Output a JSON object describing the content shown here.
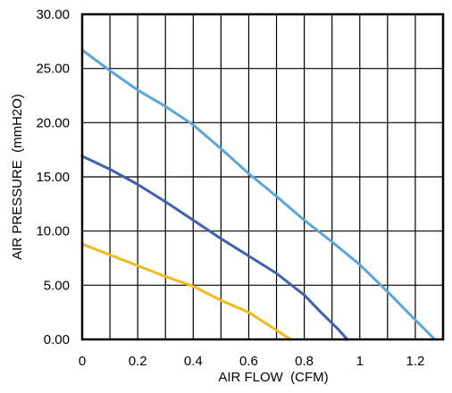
{
  "chart_data": {
    "type": "line",
    "xlabel": "AIR FLOW  (CFM)",
    "ylabel": "AIR PRESSURE  (mmH2O)",
    "xlim": [
      0,
      1.3
    ],
    "ylim": [
      0,
      30
    ],
    "x_ticks": [
      0,
      0.2,
      0.4,
      0.6,
      0.8,
      1.0,
      1.2
    ],
    "x_tick_labels": [
      "0",
      "0.2",
      "0.4",
      "0.6",
      "0.8",
      "1",
      "1.2"
    ],
    "y_ticks": [
      0,
      5,
      10,
      15,
      20,
      25,
      30
    ],
    "y_tick_labels": [
      "0.00",
      "5.00",
      "10.00",
      "15.00",
      "20.00",
      "25.00",
      "30.00"
    ],
    "grid": true,
    "series": [
      {
        "color": "#5aa6da",
        "x": [
          0,
          0.1,
          0.2,
          0.3,
          0.4,
          0.5,
          0.6,
          0.7,
          0.8,
          0.9,
          1.0,
          1.1,
          1.2,
          1.27
        ],
        "y": [
          26.7,
          24.8,
          23.0,
          21.5,
          19.8,
          17.6,
          15.3,
          13.2,
          11.0,
          9.0,
          6.9,
          4.4,
          1.8,
          0
        ]
      },
      {
        "color": "#3c62b0",
        "x": [
          0,
          0.1,
          0.2,
          0.3,
          0.4,
          0.5,
          0.6,
          0.7,
          0.8,
          0.86,
          0.92,
          0.955
        ],
        "y": [
          16.9,
          15.7,
          14.3,
          12.7,
          11.0,
          9.3,
          7.7,
          6.1,
          4.1,
          2.5,
          1.0,
          0
        ]
      },
      {
        "color": "#f2b81c",
        "x": [
          0,
          0.1,
          0.2,
          0.3,
          0.4,
          0.5,
          0.6,
          0.66,
          0.72,
          0.75
        ],
        "y": [
          8.8,
          7.8,
          6.8,
          5.8,
          4.9,
          3.6,
          2.5,
          1.5,
          0.5,
          0
        ]
      }
    ]
  }
}
